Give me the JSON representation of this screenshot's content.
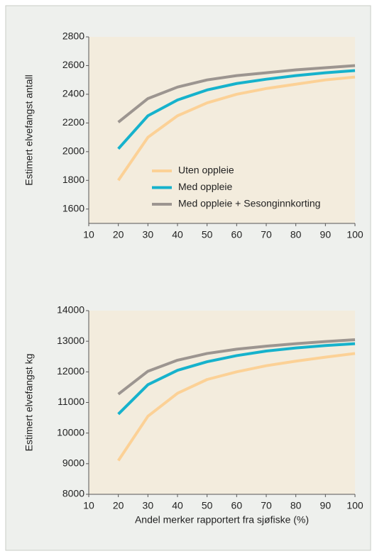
{
  "chart_data": [
    {
      "type": "line",
      "ylabel": "Estimert elvefangst antall",
      "x": [
        20,
        30,
        40,
        50,
        60,
        70,
        80,
        90,
        100
      ],
      "xlim": [
        10,
        100
      ],
      "xticks": [
        10,
        20,
        30,
        40,
        50,
        60,
        70,
        80,
        90,
        100
      ],
      "ylim": [
        1500,
        2800
      ],
      "yticks": [
        1600,
        1800,
        2000,
        2200,
        2400,
        2600,
        2800
      ],
      "legend": "center",
      "series": [
        {
          "name": "Uten oppleie",
          "color": "#fcd196",
          "values": [
            1800,
            2100,
            2250,
            2340,
            2400,
            2440,
            2470,
            2500,
            2520
          ]
        },
        {
          "name": "Med oppleie",
          "color": "#16b2cc",
          "values": [
            2020,
            2250,
            2360,
            2430,
            2475,
            2505,
            2530,
            2550,
            2565
          ]
        },
        {
          "name": "Med oppleie + Sesonginnkorting",
          "color": "#9c9590",
          "values": [
            2205,
            2370,
            2450,
            2500,
            2530,
            2550,
            2570,
            2585,
            2600
          ]
        }
      ]
    },
    {
      "type": "line",
      "ylabel": "Estimert elvefangst kg",
      "xlabel": "Andel merker rapportert fra sjøfiske (%)",
      "x": [
        20,
        30,
        40,
        50,
        60,
        70,
        80,
        90,
        100
      ],
      "xlim": [
        10,
        100
      ],
      "xticks": [
        10,
        20,
        30,
        40,
        50,
        60,
        70,
        80,
        90,
        100
      ],
      "ylim": [
        8000,
        14000
      ],
      "yticks": [
        8000,
        9000,
        10000,
        11000,
        12000,
        13000,
        14000
      ],
      "series": [
        {
          "color": "#fcd196",
          "values": [
            9100,
            10550,
            11300,
            11750,
            12000,
            12200,
            12350,
            12480,
            12600
          ]
        },
        {
          "color": "#16b2cc",
          "values": [
            10620,
            11580,
            12050,
            12330,
            12530,
            12680,
            12780,
            12860,
            12920
          ]
        },
        {
          "color": "#9c9590",
          "values": [
            11270,
            12020,
            12380,
            12600,
            12740,
            12840,
            12920,
            12990,
            13050
          ]
        }
      ]
    }
  ]
}
